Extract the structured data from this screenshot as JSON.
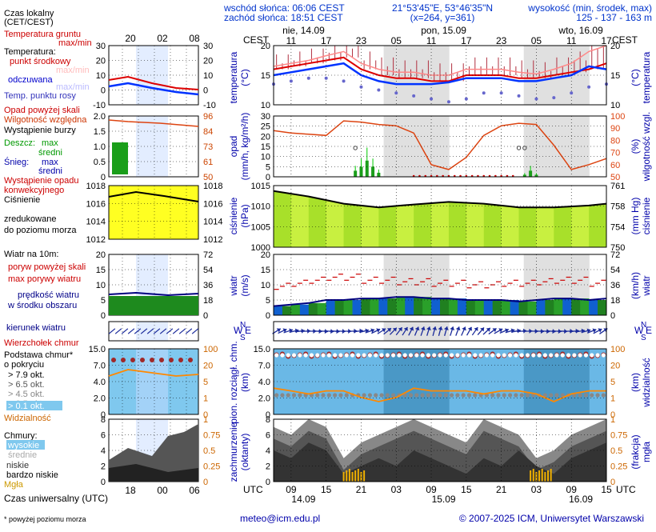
{
  "header": {
    "sunrise": "wschód słońca: 06:06 CEST",
    "sunset": "zachód słońca: 18:51 CEST",
    "coords": "21°53'45\"E, 53°46'35\"N",
    "grid": "(x=264, y=361)",
    "elevation_label": "wysokość (min, środek, max)",
    "elevation_values": "125 - 137 - 163 m"
  },
  "timeline": {
    "cest_label": "CEST",
    "utc_label": "UTC",
    "days_top": [
      "nie, 14.09",
      "pon, 15.09",
      "wto, 16.09"
    ],
    "hours_top": [
      "11",
      "17",
      "23",
      "05",
      "11",
      "17",
      "23",
      "05",
      "11",
      "17"
    ],
    "hours_bottom": [
      "09",
      "15",
      "21",
      "03",
      "09",
      "15",
      "21",
      "03",
      "09",
      "15"
    ],
    "days_bottom": [
      "14.09",
      "15.09",
      "16.09"
    ],
    "night_bands_hours": [
      [
        18.85,
        30.1
      ],
      [
        42.85,
        54.1
      ]
    ],
    "start_hour_utc": 6,
    "span_hours": 57
  },
  "legend": {
    "local_time": "Czas lokalny",
    "local_time_sub": "(CET/CEST)",
    "local_hours": [
      "20",
      "02",
      "08"
    ],
    "utc_time": "Czas uniwersalny (UTC)",
    "utc_hours": [
      "18",
      "00",
      "06"
    ],
    "temp_ground": "Temperatura gruntu",
    "temp_ground_sub": "max/min",
    "temp_title": "Temperatura:",
    "temp_mid": "punkt środkowy",
    "temp_maxmin": "max/min",
    "temp_felt": "odczuwana",
    "temp_felt_maxmin": "max/min",
    "temp_dew": "Temp. punktu rosy",
    "temp_axis": [
      "30",
      "20",
      "10",
      "0",
      "-10"
    ],
    "rain_over": "Opad powyżej skali",
    "humidity": "Wilgotność względna",
    "storm": "Wystąpienie burzy",
    "rain_label": "Deszcz:",
    "rain_max": "max",
    "rain_mean": "średni",
    "snow_label": "Śnieg:",
    "snow_max": "max",
    "snow_mean": "średni",
    "rain_occurrence": "Wystąpienie opadu",
    "rain_occurrence2": "konwekcyjnego",
    "rain_axis": [
      "2.0",
      "1.5",
      "1.0",
      "0.5",
      "0"
    ],
    "hum_axis": [
      "96",
      "84",
      "73",
      "61",
      "50"
    ],
    "pressure_1": "Ciśnienie",
    "pressure_2": "zredukowane",
    "pressure_3": "do poziomu morza",
    "pressure_axis": [
      "1018",
      "1016",
      "1014",
      "1012"
    ],
    "wind_title": "Wiatr na 10m:",
    "gust_over": "poryw powyżej skali",
    "gust_max": "max porywy wiatru",
    "wind_mean": "prędkość wiatru",
    "wind_mean2": "w środku obszaru",
    "wind_axis_ms": [
      "20",
      "15",
      "10",
      "5",
      "0"
    ],
    "wind_axis_kmh": [
      "72",
      "54",
      "36",
      "18",
      "0"
    ],
    "wind_dir": "kierunek wiatru",
    "cloud_top": "Wierzchołek chmur",
    "cloud_base": "Podstawa chmur*",
    "cloud_base2": "o pokryciu",
    "okt_79": "> 7.9 okt.",
    "okt_65": "> 6.5 okt.",
    "okt_45": "> 4.5 okt.",
    "okt_25": "> 2.5 okt.",
    "okt_01": "> 0.1 okt.",
    "visibility": "Widzialność",
    "cb_axis": [
      "15.0",
      "7.0",
      "4.0",
      "2.0",
      "0"
    ],
    "cbr_axis": [
      "100",
      "20",
      "5",
      "1",
      "0"
    ],
    "clouds": "Chmury:",
    "cl_high": "wysokie",
    "cl_mid": "średnie",
    "cl_low": "niskie",
    "cl_vlow": "bardzo niskie",
    "fog": "Mgła",
    "cl_axis": [
      "8",
      "6",
      "4",
      "2",
      "0"
    ],
    "clr_axis": [
      "1",
      "0.75",
      "0.5",
      "0.25",
      "0"
    ],
    "footnote": "* powyżej poziomu morza"
  },
  "axes": {
    "temp_title": "temperatura",
    "temp_unit": "(°C)",
    "temp_ticks": [
      "20",
      "15",
      "10"
    ],
    "rain_title": "opad",
    "rain_unit": "(mm/h, kg/m²/h)",
    "rain_ticks": [
      "30",
      "25",
      "20",
      "15",
      "10",
      "5",
      "0"
    ],
    "hum_title": "wilgotność wzgl.",
    "hum_unit": "(%)",
    "hum_ticks": [
      "100",
      "90",
      "80",
      "70",
      "60",
      "50"
    ],
    "press_title": "ciśnienie",
    "press_unit": "(hPa)",
    "press_ticks": [
      "1015",
      "1010",
      "1005",
      "1000"
    ],
    "press_r_title": "ciśnienie",
    "press_r_unit": "(mm Hg)",
    "press_r_ticks": [
      "761",
      "758",
      "754",
      "750"
    ],
    "wind_title": "wiatr",
    "wind_unit": "(m/s)",
    "wind_ticks": [
      "20",
      "15",
      "10",
      "5",
      "0"
    ],
    "wind_r_title": "wiatr",
    "wind_r_unit": "(km/h)",
    "wind_r_ticks": [
      "72",
      "54",
      "36",
      "18",
      "0"
    ],
    "dir_n": "N",
    "dir_w": "W",
    "dir_s": "S",
    "dir_e": "E",
    "cb_title": "pion. rozciągł. chm.",
    "cb_unit": "(km)",
    "cb_ticks": [
      "15.0",
      "7.0",
      "4.0",
      "2.0",
      "0"
    ],
    "vis_title": "widzialność",
    "vis_unit": "(km)",
    "vis_ticks": [
      "100",
      "20",
      "5",
      "1",
      "0"
    ],
    "cl_title": "zachmurzenie",
    "cl_unit": "(oktanty)",
    "cl_ticks": [
      "8",
      "6",
      "4",
      "2",
      "0"
    ],
    "clr_title": "mgła",
    "clr_unit": "(frakcja)",
    "clr_ticks": [
      "1",
      "0.75",
      "0.5",
      "0.25",
      "0"
    ]
  },
  "footer": {
    "email": "meteo@icm.edu.pl",
    "copyright": "© 2007-2025 ICM, Uniwersytet Warszawski"
  },
  "chart_data": {
    "type": "line",
    "x_unit": "hour offset from 14.09 06 UTC",
    "temperature": {
      "x": [
        0,
        3,
        6,
        9,
        12,
        15,
        18,
        21,
        24,
        27,
        30,
        33,
        36,
        39,
        42,
        45,
        48,
        51,
        54,
        57
      ],
      "mid": [
        16,
        16.5,
        17,
        17.5,
        18,
        16,
        15,
        14.5,
        14.5,
        14,
        14,
        15,
        15,
        15,
        14.5,
        14.5,
        15,
        15.5,
        16,
        17
      ],
      "max": [
        16.5,
        17,
        17.5,
        18.3,
        19,
        17,
        16,
        15.5,
        15.5,
        15,
        15,
        16,
        16,
        16,
        15.5,
        15.2,
        16,
        17,
        19,
        20
      ],
      "felt": [
        15,
        15.5,
        16,
        16.5,
        17,
        15,
        14,
        13.5,
        13.5,
        13.5,
        13.8,
        14.5,
        14.5,
        14.5,
        14,
        14,
        14.5,
        15,
        16.5,
        16
      ],
      "dew": [
        13.5,
        14,
        14.5,
        14.5,
        14,
        13,
        12.5,
        12,
        11.5,
        11,
        10.5,
        11,
        12,
        12,
        11.5,
        11,
        11.2,
        12,
        13,
        13.5
      ],
      "ylim": [
        10,
        20
      ]
    },
    "precipitation": {
      "x": [
        14,
        15,
        16,
        17,
        18,
        43,
        44,
        45
      ],
      "rain_mm": [
        3,
        5,
        8,
        5,
        2,
        1,
        3,
        1
      ],
      "ylim": [
        0,
        30
      ]
    },
    "humidity": {
      "x": [
        0,
        3,
        6,
        9,
        12,
        15,
        18,
        21,
        24,
        27,
        30,
        33,
        36,
        39,
        42,
        45,
        48,
        51,
        54,
        57
      ],
      "values": [
        88,
        86,
        85,
        84,
        96,
        95,
        93,
        92,
        86,
        60,
        56,
        66,
        84,
        92,
        94,
        93,
        76,
        56,
        60,
        65
      ],
      "ylim": [
        50,
        100
      ]
    },
    "pressure": {
      "x": [
        0,
        6,
        12,
        18,
        24,
        30,
        36,
        42,
        48,
        54,
        57
      ],
      "values": [
        1015.5,
        1014,
        1012,
        1011,
        1011.8,
        1012.5,
        1012,
        1011,
        1011,
        1011.5,
        1012
      ],
      "ylim": [
        1000,
        1017
      ]
    },
    "wind": {
      "x": [
        0,
        3,
        6,
        9,
        12,
        15,
        18,
        21,
        24,
        27,
        30,
        33,
        36,
        39,
        42,
        45,
        48,
        51,
        54,
        57
      ],
      "mean": [
        3,
        3.5,
        4,
        5,
        5,
        5.5,
        5.5,
        6,
        6,
        5.5,
        5.5,
        5,
        5,
        5,
        4.5,
        5,
        5.5,
        5.5,
        5,
        5.5
      ],
      "gust": [
        9,
        10,
        11,
        12,
        12,
        11,
        11,
        10.5,
        10.5,
        10,
        10,
        9.5,
        9.5,
        10,
        10,
        10.5,
        11,
        11,
        10,
        10
      ],
      "ylim": [
        0,
        20
      ]
    },
    "clouds": {
      "x": [
        0,
        3,
        6,
        9,
        12,
        15,
        18,
        21,
        24,
        27,
        30,
        33,
        36,
        39,
        42,
        45,
        48,
        51,
        54,
        57
      ],
      "high": [
        7,
        6,
        8,
        7,
        3,
        5,
        6,
        7,
        8,
        7,
        6,
        5,
        8,
        7,
        6,
        3,
        4,
        6,
        7,
        8
      ],
      "low": [
        4,
        3,
        5,
        4,
        1,
        2,
        3,
        2,
        4,
        3,
        2,
        1,
        3,
        2,
        4,
        2,
        1,
        3,
        4,
        5
      ],
      "ylim": [
        0,
        8
      ]
    },
    "visibility": {
      "x": [
        0,
        3,
        6,
        9,
        12,
        15,
        18,
        21,
        24,
        27,
        30,
        33,
        36,
        39,
        42,
        45,
        48,
        51,
        54,
        57
      ],
      "values": [
        3.5,
        3,
        2.5,
        3,
        3,
        2,
        1.5,
        2,
        3.5,
        3,
        3,
        3,
        2.5,
        3,
        3,
        2.5,
        1.5,
        2.5,
        3,
        3
      ]
    }
  }
}
